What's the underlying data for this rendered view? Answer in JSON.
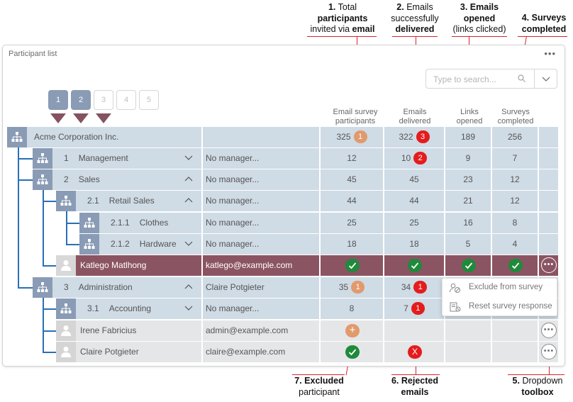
{
  "annotations": [
    {
      "num": "1.",
      "lines": [
        [
          "Total",
          false
        ],
        [
          "participants",
          true
        ],
        [
          "invited via ",
          false,
          "email",
          true
        ]
      ]
    },
    {
      "num": "2.",
      "lines": [
        [
          "Emails",
          false
        ],
        [
          "successfully",
          false
        ],
        [
          "delivered",
          true
        ]
      ]
    },
    {
      "num": "3.",
      "lines": [
        [
          "Emails",
          true
        ],
        [
          "opened",
          true
        ],
        [
          "(links clicked)",
          false
        ]
      ]
    },
    {
      "num": "4.",
      "lines": [
        [
          "Surveys",
          true
        ],
        [
          "completed",
          true
        ]
      ]
    }
  ],
  "annot1": {
    "l1": "Total",
    "l2": "participants",
    "l3a": "invited via ",
    "l3b": "email"
  },
  "annot2": {
    "l1": "Emails",
    "l2": "successfully",
    "l3": "delivered"
  },
  "annot3": {
    "l1": "Emails",
    "l2": "opened",
    "l3": "(links clicked)"
  },
  "annot4": {
    "l1": "Surveys",
    "l2": "completed"
  },
  "annot5": {
    "num": "5.",
    "l1": "Dropdown",
    "l2": "toolbox"
  },
  "annot6": {
    "num": "6.",
    "l1": "Rejected",
    "l2": "emails"
  },
  "annot7": {
    "num": "7.",
    "l1": "Excluded",
    "l2": "participant"
  },
  "nums": {
    "n1": "1.",
    "n2": "2.",
    "n3": "3.",
    "n4": "4."
  },
  "panel": {
    "title": "Participant list",
    "menu": "•••"
  },
  "search": {
    "placeholder": "Type to search..."
  },
  "levels": [
    "1",
    "2",
    "3",
    "4",
    "5"
  ],
  "columns": {
    "c1a": "Email survey",
    "c1b": "participants",
    "c2a": "Emails",
    "c2b": "delivered",
    "c3a": "Links",
    "c3b": "opened",
    "c4a": "Surveys",
    "c4b": "completed"
  },
  "rows": [
    {
      "num": "",
      "name": "Acme Corporation Inc.",
      "manager": "",
      "participants": "325",
      "participants_badge": "1",
      "delivered": "322",
      "delivered_badge": "3",
      "opened": "189",
      "completed": "256"
    },
    {
      "num": "1",
      "name": "Management",
      "manager": "No manager...",
      "participants": "12",
      "delivered": "10",
      "delivered_badge": "2",
      "opened": "9",
      "completed": "7"
    },
    {
      "num": "2",
      "name": "Sales",
      "manager": "No manager...",
      "participants": "45",
      "delivered": "45",
      "opened": "23",
      "completed": "12"
    },
    {
      "num": "2.1",
      "name": "Retail Sales",
      "manager": "No manager...",
      "participants": "44",
      "delivered": "44",
      "opened": "21",
      "completed": "12"
    },
    {
      "num": "2.1.1",
      "name": "Clothes",
      "manager": "No manager...",
      "participants": "25",
      "delivered": "25",
      "opened": "16",
      "completed": "8"
    },
    {
      "num": "2.1.2",
      "name": "Hardware",
      "manager": "No manager...",
      "participants": "18",
      "delivered": "18",
      "opened": "5",
      "completed": "4"
    },
    {
      "num": "",
      "name": "Katlego Matlhong",
      "manager": "katlego@example.com"
    },
    {
      "num": "3",
      "name": "Administration",
      "manager": "Claire Potgieter",
      "participants": "35",
      "participants_badge": "1",
      "delivered": "34",
      "delivered_badge": "1"
    },
    {
      "num": "3.1",
      "name": "Accounting",
      "manager": "No manager...",
      "participants": "8",
      "delivered": "7",
      "delivered_badge": "1"
    },
    {
      "num": "",
      "name": "Irene Fabricius",
      "manager": "admin@example.com"
    },
    {
      "num": "",
      "name": "Claire Potgieter",
      "manager": "claire@example.com"
    }
  ],
  "dropdown": {
    "exclude": "Exclude from survey",
    "reset": "Reset survey response"
  },
  "x_mark": "X",
  "plus_mark": "+",
  "colors": {
    "node": "#8a9bb5",
    "row": "#cfdbe5",
    "selected": "#8b5463",
    "employee": "#e5e6e8",
    "tree": "#2a6fb8",
    "check": "#1f8a3b",
    "reject": "#e51c1c",
    "orange": "#e19a6c",
    "annotation_line": "#d9232d"
  }
}
